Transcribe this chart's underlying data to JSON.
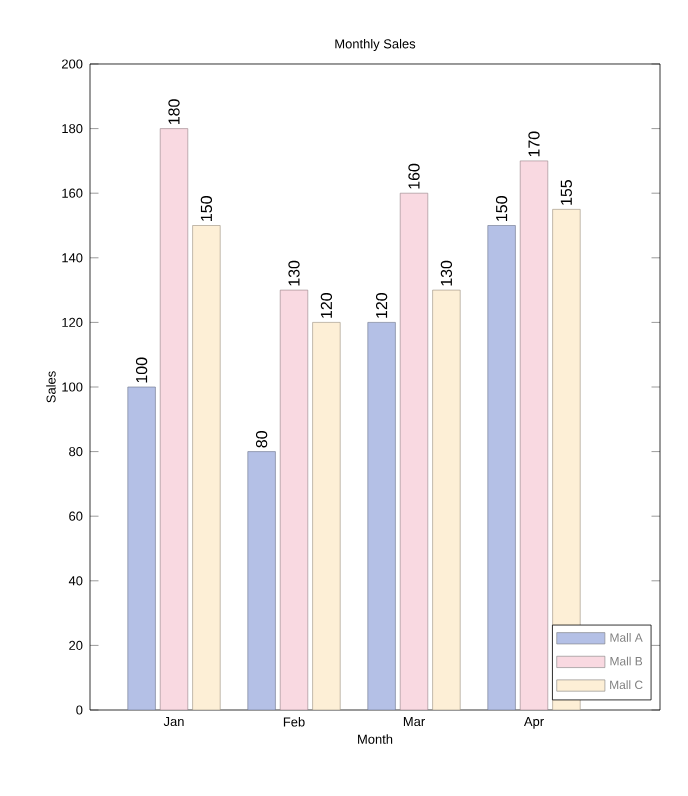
{
  "chart_data": {
    "type": "bar",
    "title": "Monthly Sales",
    "xlabel": "Month",
    "ylabel": "Sales",
    "categories": [
      "Jan",
      "Feb",
      "Mar",
      "Apr"
    ],
    "series": [
      {
        "name": "Mall A",
        "color": "#b4c0e6",
        "values": [
          100,
          80,
          120,
          150
        ]
      },
      {
        "name": "Mall B",
        "color": "#f9d9e1",
        "values": [
          180,
          130,
          160,
          170
        ]
      },
      {
        "name": "Mall C",
        "color": "#fdefd6",
        "values": [
          150,
          120,
          130,
          155
        ]
      }
    ],
    "ylim": [
      0,
      200
    ],
    "yticks": [
      0,
      20,
      40,
      60,
      80,
      100,
      120,
      140,
      160,
      180,
      200
    ],
    "data_labels": true,
    "legend": "bottom right",
    "grid": false
  }
}
